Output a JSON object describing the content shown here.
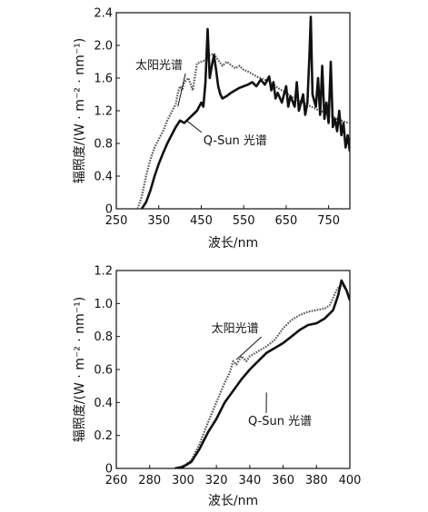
{
  "chart_data": [
    {
      "type": "line",
      "xlabel": "波长/nm",
      "ylabel": "辐照度/(W · m⁻² · nm⁻¹)",
      "xlim": [
        250,
        800
      ],
      "ylim": [
        0,
        2.4
      ],
      "xticks": [
        "250",
        "350",
        "450",
        "550",
        "650",
        "750"
      ],
      "xtick_values": [
        250,
        350,
        450,
        550,
        650,
        750
      ],
      "yticks": [
        "0",
        "0.4",
        "0.8",
        "1.2",
        "1.6",
        "2.0",
        "2.4"
      ],
      "ytick_values": [
        0,
        0.4,
        0.8,
        1.2,
        1.6,
        2.0,
        2.4
      ],
      "grid": false,
      "series": [
        {
          "name": "太阳光谱",
          "style": "dotted",
          "label_at": [
            295,
            1.71
          ],
          "leader_to": [
            395,
            1.25
          ],
          "points": [
            [
              300,
              0
            ],
            [
              310,
              0.15
            ],
            [
              320,
              0.4
            ],
            [
              330,
              0.6
            ],
            [
              340,
              0.75
            ],
            [
              350,
              0.85
            ],
            [
              360,
              0.95
            ],
            [
              370,
              1.08
            ],
            [
              380,
              1.18
            ],
            [
              390,
              1.28
            ],
            [
              395,
              1.42
            ],
            [
              400,
              1.5
            ],
            [
              405,
              1.45
            ],
            [
              410,
              1.55
            ],
            [
              420,
              1.6
            ],
            [
              430,
              1.45
            ],
            [
              440,
              1.78
            ],
            [
              450,
              1.8
            ],
            [
              460,
              1.82
            ],
            [
              470,
              1.88
            ],
            [
              480,
              1.9
            ],
            [
              490,
              1.82
            ],
            [
              500,
              1.75
            ],
            [
              510,
              1.8
            ],
            [
              520,
              1.76
            ],
            [
              530,
              1.72
            ],
            [
              540,
              1.75
            ],
            [
              550,
              1.7
            ],
            [
              560,
              1.68
            ],
            [
              570,
              1.65
            ],
            [
              580,
              1.62
            ],
            [
              590,
              1.6
            ],
            [
              600,
              1.58
            ],
            [
              610,
              1.55
            ],
            [
              620,
              1.52
            ],
            [
              630,
              1.48
            ],
            [
              640,
              1.45
            ],
            [
              650,
              1.42
            ],
            [
              660,
              1.38
            ],
            [
              670,
              1.35
            ],
            [
              680,
              1.32
            ],
            [
              690,
              1.3
            ],
            [
              700,
              1.27
            ],
            [
              710,
              1.25
            ],
            [
              720,
              1.22
            ],
            [
              730,
              1.2
            ],
            [
              740,
              1.18
            ],
            [
              750,
              1.15
            ],
            [
              760,
              1.13
            ],
            [
              770,
              1.1
            ],
            [
              780,
              1.08
            ],
            [
              790,
              1.06
            ],
            [
              800,
              1.05
            ]
          ]
        },
        {
          "name": "Q-Sun 光谱",
          "style": "solid",
          "label_at": [
            455,
            0.79
          ],
          "leader_to": [
            418,
            1.07
          ],
          "points": [
            [
              310,
              0
            ],
            [
              320,
              0.08
            ],
            [
              330,
              0.22
            ],
            [
              340,
              0.4
            ],
            [
              350,
              0.55
            ],
            [
              360,
              0.68
            ],
            [
              370,
              0.8
            ],
            [
              380,
              0.9
            ],
            [
              390,
              1.0
            ],
            [
              400,
              1.08
            ],
            [
              410,
              1.05
            ],
            [
              420,
              1.1
            ],
            [
              430,
              1.15
            ],
            [
              440,
              1.2
            ],
            [
              450,
              1.3
            ],
            [
              455,
              1.25
            ],
            [
              460,
              1.55
            ],
            [
              465,
              2.2
            ],
            [
              470,
              1.6
            ],
            [
              475,
              1.75
            ],
            [
              480,
              1.88
            ],
            [
              485,
              1.7
            ],
            [
              490,
              1.5
            ],
            [
              495,
              1.4
            ],
            [
              500,
              1.35
            ],
            [
              510,
              1.38
            ],
            [
              520,
              1.42
            ],
            [
              530,
              1.45
            ],
            [
              540,
              1.48
            ],
            [
              550,
              1.5
            ],
            [
              560,
              1.52
            ],
            [
              570,
              1.55
            ],
            [
              580,
              1.5
            ],
            [
              590,
              1.58
            ],
            [
              600,
              1.52
            ],
            [
              610,
              1.62
            ],
            [
              615,
              1.45
            ],
            [
              620,
              1.55
            ],
            [
              625,
              1.35
            ],
            [
              630,
              1.42
            ],
            [
              640,
              1.3
            ],
            [
              650,
              1.5
            ],
            [
              655,
              1.25
            ],
            [
              660,
              1.38
            ],
            [
              670,
              1.25
            ],
            [
              675,
              1.55
            ],
            [
              680,
              1.2
            ],
            [
              690,
              1.4
            ],
            [
              695,
              1.15
            ],
            [
              700,
              1.3
            ],
            [
              705,
              1.9
            ],
            [
              708,
              2.35
            ],
            [
              712,
              1.4
            ],
            [
              720,
              1.25
            ],
            [
              725,
              1.6
            ],
            [
              730,
              1.15
            ],
            [
              735,
              1.75
            ],
            [
              740,
              1.1
            ],
            [
              745,
              1.3
            ],
            [
              750,
              1.05
            ],
            [
              755,
              1.8
            ],
            [
              760,
              1.0
            ],
            [
              765,
              1.1
            ],
            [
              770,
              0.95
            ],
            [
              775,
              1.2
            ],
            [
              780,
              0.9
            ],
            [
              785,
              1.05
            ],
            [
              790,
              0.75
            ],
            [
              795,
              0.9
            ],
            [
              800,
              0.7
            ]
          ]
        }
      ]
    },
    {
      "type": "line",
      "xlabel": "波长/nm",
      "ylabel": "辐照度/(W · m⁻² · nm⁻¹)",
      "xlim": [
        260,
        400
      ],
      "ylim": [
        0,
        1.2
      ],
      "xticks": [
        "260",
        "280",
        "300",
        "320",
        "340",
        "360",
        "380",
        "400"
      ],
      "xtick_values": [
        260,
        280,
        300,
        320,
        340,
        360,
        380,
        400
      ],
      "yticks": [
        "0",
        "0.2",
        "0.4",
        "0.6",
        "0.8",
        "1.0",
        "1.2"
      ],
      "ytick_values": [
        0,
        0.2,
        0.4,
        0.6,
        0.8,
        1.0,
        1.2
      ],
      "grid": false,
      "series": [
        {
          "name": "太阳光谱",
          "style": "dotted",
          "label_at": [
            317,
            0.825
          ],
          "leader_to": [
            332,
            0.66
          ],
          "points": [
            [
              297,
              0
            ],
            [
              300,
              0.01
            ],
            [
              305,
              0.05
            ],
            [
              310,
              0.15
            ],
            [
              315,
              0.28
            ],
            [
              320,
              0.4
            ],
            [
              325,
              0.52
            ],
            [
              328,
              0.58
            ],
            [
              330,
              0.65
            ],
            [
              332,
              0.63
            ],
            [
              335,
              0.68
            ],
            [
              338,
              0.65
            ],
            [
              340,
              0.68
            ],
            [
              345,
              0.71
            ],
            [
              350,
              0.74
            ],
            [
              355,
              0.78
            ],
            [
              360,
              0.85
            ],
            [
              365,
              0.9
            ],
            [
              370,
              0.93
            ],
            [
              375,
              0.95
            ],
            [
              380,
              0.96
            ],
            [
              385,
              0.97
            ],
            [
              388,
              0.99
            ],
            [
              392,
              1.08
            ],
            [
              395,
              1.12
            ],
            [
              398,
              1.08
            ],
            [
              400,
              1.02
            ]
          ]
        },
        {
          "name": "Q-Sun 光谱",
          "style": "solid",
          "label_at": [
            339,
            0.265
          ],
          "leader_to": [
            350,
            0.46
          ],
          "points": [
            [
              295,
              0
            ],
            [
              300,
              0.01
            ],
            [
              305,
              0.04
            ],
            [
              310,
              0.12
            ],
            [
              315,
              0.22
            ],
            [
              320,
              0.3
            ],
            [
              325,
              0.4
            ],
            [
              330,
              0.47
            ],
            [
              335,
              0.54
            ],
            [
              340,
              0.6
            ],
            [
              345,
              0.65
            ],
            [
              350,
              0.7
            ],
            [
              355,
              0.73
            ],
            [
              360,
              0.76
            ],
            [
              365,
              0.8
            ],
            [
              370,
              0.84
            ],
            [
              375,
              0.87
            ],
            [
              380,
              0.88
            ],
            [
              385,
              0.91
            ],
            [
              390,
              0.96
            ],
            [
              393,
              1.05
            ],
            [
              395,
              1.14
            ],
            [
              398,
              1.08
            ],
            [
              400,
              1.02
            ]
          ]
        }
      ]
    }
  ]
}
